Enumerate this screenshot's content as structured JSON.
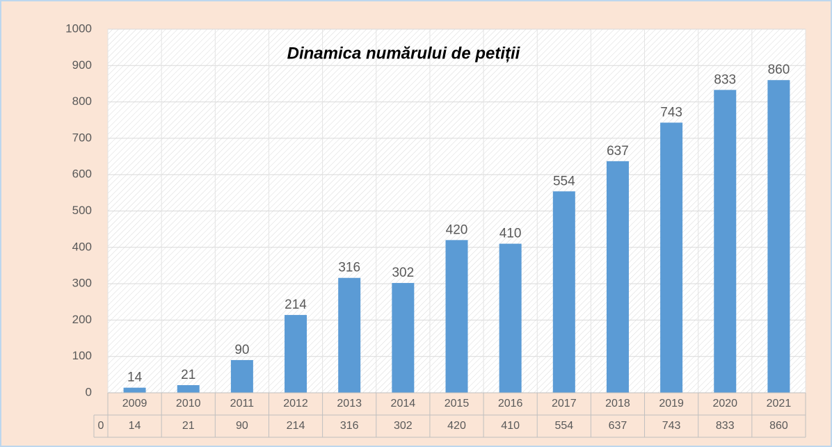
{
  "chart_data": {
    "type": "bar",
    "title": "Dinamica numărului de petiții",
    "categories": [
      "2009",
      "2010",
      "2011",
      "2012",
      "2013",
      "2014",
      "2015",
      "2016",
      "2017",
      "2018",
      "2019",
      "2020",
      "2021"
    ],
    "series": [
      {
        "name": "0",
        "color": "#5b9bd5",
        "values": [
          14,
          21,
          90,
          214,
          316,
          302,
          420,
          410,
          554,
          637,
          743,
          833,
          860
        ]
      }
    ],
    "ylim": [
      0,
      1000
    ],
    "yticks": [
      0,
      100,
      200,
      300,
      400,
      500,
      600,
      700,
      800,
      900,
      1000
    ],
    "grid": true,
    "data_table": true
  }
}
